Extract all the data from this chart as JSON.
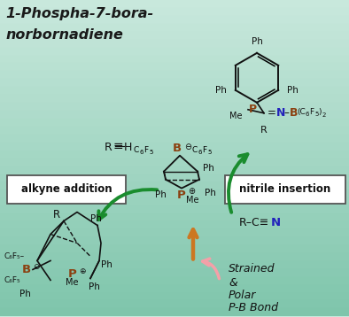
{
  "bg_top": "#c8e8dc",
  "bg_bottom": "#7dc4aa",
  "title_line1": "1-Phospha-7-bora-",
  "title_line2": "norbornadiene",
  "title_color": "#1a1a1a",
  "title_fontsize": 11.5,
  "green": "#1a8c2e",
  "orange": "#cc7722",
  "pink": "#f4a0a8",
  "black": "#111111",
  "blue_n": "#2222bb",
  "brown_p": "#8b4010",
  "alkyne_label": "alkyne addition",
  "nitrile_label": "nitrile insertion",
  "strained_text": "Strained\n&\nPolar\nP-B Bond"
}
